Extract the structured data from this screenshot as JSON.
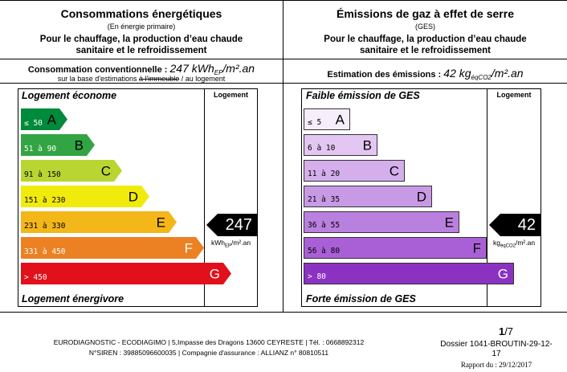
{
  "energy": {
    "title": "Consommations énergétiques",
    "subtitle": "(En énergie primaire)",
    "desc_line1": "Pour le chauffage, la production d’eau chaude",
    "desc_line2": "sanitaire et le refroidissement",
    "summary_label": "Consommation conventionnelle : ",
    "summary_value": "247 kWh",
    "summary_sub": "EP",
    "summary_unit": "/m².an",
    "basis_prefix": "sur la base d'estimations ",
    "basis_struck": "à l'immeuble",
    "basis_suffix": " / au logement",
    "top_label": "Logement économe",
    "bottom_label": "Logement énergivore",
    "column_header": "Logement",
    "classes": [
      {
        "range": "≤ 50",
        "letter": "A",
        "color": "#008a3b"
      },
      {
        "range": "51 à 90",
        "letter": "B",
        "color": "#33a444"
      },
      {
        "range": "91 à 150",
        "letter": "C",
        "color": "#b9d531"
      },
      {
        "range": "151 à 230",
        "letter": "D",
        "color": "#f1ea0d"
      },
      {
        "range": "231 à 330",
        "letter": "E",
        "color": "#f4b719"
      },
      {
        "range": "331 à 450",
        "letter": "F",
        "color": "#ec8124"
      },
      {
        "range": "> 450",
        "letter": "G",
        "color": "#e2101a"
      }
    ],
    "value": "247",
    "value_unit": "kWhEP/m².an",
    "active_class_index": 4
  },
  "ges": {
    "title": "Émissions de gaz à effet de serre",
    "subtitle": "(GES)",
    "desc_line1": "Pour le chauffage, la production d’eau chaude",
    "desc_line2": "sanitaire et le refroidissement",
    "summary_label": "Estimation des émissions : ",
    "summary_value": "42 kg",
    "summary_sub": "éqCO2",
    "summary_unit": "/m².an",
    "top_label": "Faible émission de GES",
    "bottom_label": "Forte émission de GES",
    "column_header": "Logement",
    "classes": [
      {
        "range": "≤ 5",
        "letter": "A",
        "color": "#f6eefa"
      },
      {
        "range": "6 à 10",
        "letter": "B",
        "color": "#e3c6f1"
      },
      {
        "range": "11 à 20",
        "letter": "C",
        "color": "#d5aeec"
      },
      {
        "range": "21 à 35",
        "letter": "D",
        "color": "#c89ae6"
      },
      {
        "range": "36 à 55",
        "letter": "E",
        "color": "#ba80df"
      },
      {
        "range": "56 à 80",
        "letter": "F",
        "color": "#a960d7"
      },
      {
        "range": "> 80",
        "letter": "G",
        "color": "#8b32c3"
      }
    ],
    "value": "42",
    "value_unit": "kgéqCO2/m².an",
    "active_class_index": 4
  },
  "footer": {
    "company_line1": "EURODIAGNOSTIC - ECODIAGIMO | 5,Impasse des Dragons 13600 CEYRESTE | Tél. : 0668892312",
    "company_line2": "N°SIREN : 39885096600035 | Compagnie d'assurance : ALLIANZ n° 80810511",
    "page_current": "1",
    "page_total": "/7",
    "dossier_line1": "Dossier 1041-BROUTIN-29-12-",
    "dossier_line2": "17",
    "report_date": "Rapport du : 29/12/2017"
  }
}
